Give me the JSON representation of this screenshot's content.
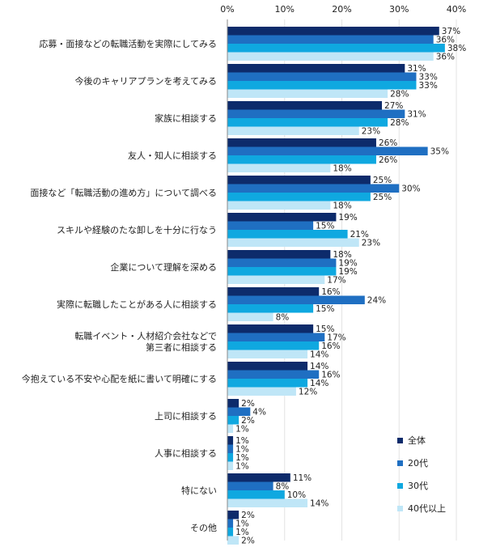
{
  "chart_data": {
    "type": "bar",
    "orientation": "horizontal",
    "xlim": [
      0,
      40
    ],
    "xticks": [
      "0%",
      "10%",
      "20%",
      "30%",
      "40%"
    ],
    "grid": true,
    "legend_position": "bottom-right",
    "unit": "%",
    "categories": [
      [
        "応募・面接などの転職活動を実際にしてみる"
      ],
      [
        "今後のキャリアプランを考えてみる"
      ],
      [
        "家族に相談する"
      ],
      [
        "友人・知人に相談する"
      ],
      [
        "面接など「転職活動の進め方」について調べる"
      ],
      [
        "スキルや経験のたな卸しを十分に行なう"
      ],
      [
        "企業について理解を深める"
      ],
      [
        "実際に転職したことがある人に相談する"
      ],
      [
        "転職イベント・人材紹介会社などで",
        "第三者に相談する"
      ],
      [
        "今抱えている不安や心配を紙に書いて明確にする"
      ],
      [
        "上司に相談する"
      ],
      [
        "人事に相談する"
      ],
      [
        "特にない"
      ],
      [
        "その他"
      ]
    ],
    "series": [
      {
        "name": "全体",
        "color": "#0d2b6b",
        "values": [
          37,
          31,
          27,
          26,
          25,
          19,
          18,
          16,
          15,
          14,
          2,
          1,
          11,
          2
        ]
      },
      {
        "name": "20代",
        "color": "#1f6fc2",
        "values": [
          36,
          33,
          31,
          35,
          30,
          15,
          19,
          24,
          17,
          16,
          4,
          1,
          8,
          1
        ]
      },
      {
        "name": "30代",
        "color": "#0fa8e0",
        "values": [
          38,
          33,
          28,
          26,
          25,
          21,
          19,
          15,
          16,
          14,
          2,
          1,
          10,
          1
        ]
      },
      {
        "name": "40代以上",
        "color": "#bfe6f7",
        "values": [
          36,
          28,
          23,
          18,
          18,
          23,
          17,
          8,
          14,
          12,
          1,
          1,
          14,
          2
        ]
      }
    ]
  }
}
